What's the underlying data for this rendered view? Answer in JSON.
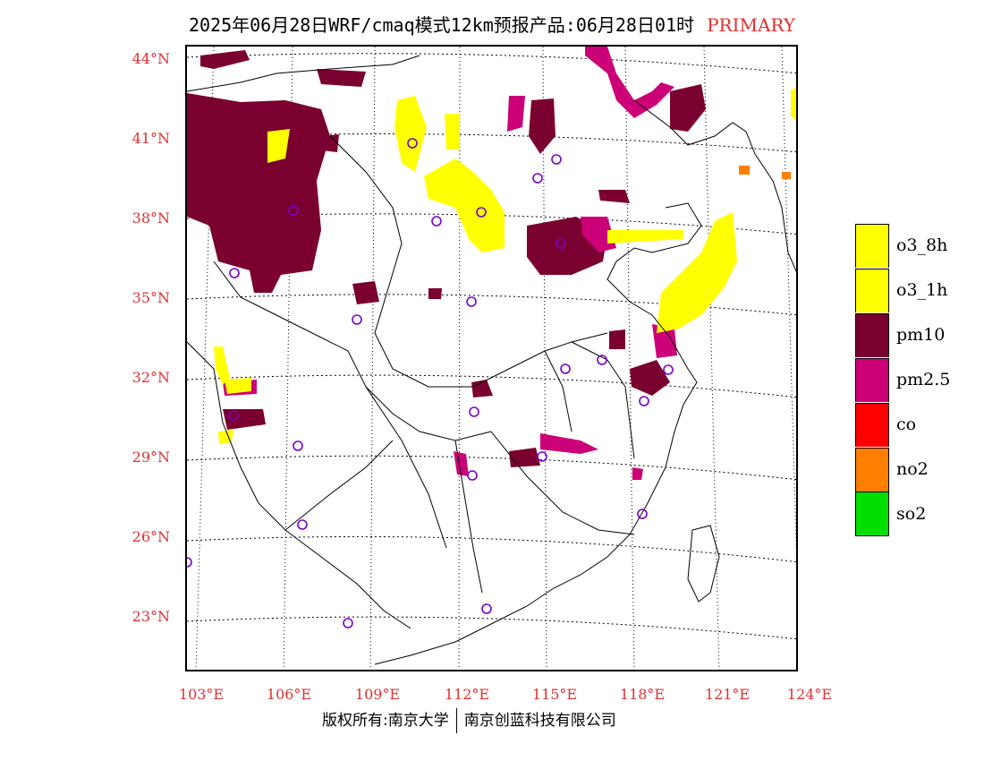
{
  "title": {
    "main": "2025年06月28日WRF/cmaq模式12km预报产品:06月28日01时",
    "tag": "PRIMARY"
  },
  "colors": {
    "o3_8h": "#ffff00",
    "o3_1h": "#ffff00",
    "pm10": "#7a0030",
    "pm25": "#cc0077",
    "co": "#ff0000",
    "no2": "#ff7f00",
    "so2": "#00dd00",
    "station": "#7700cc",
    "axis_label": "#e03030"
  },
  "lat_labels": [
    "44°N",
    "41°N",
    "38°N",
    "35°N",
    "32°N",
    "29°N",
    "26°N",
    "23°N"
  ],
  "lon_labels": [
    "103°E",
    "106°E",
    "109°E",
    "112°E",
    "115°E",
    "118°E",
    "121°E",
    "124°E"
  ],
  "legend": [
    {
      "label": "o3_8h",
      "color_key": "o3_8h"
    },
    {
      "label": "o3_1h",
      "color_key": "o3_1h"
    },
    {
      "label": "pm10",
      "color_key": "pm10"
    },
    {
      "label": "pm2.5",
      "color_key": "pm25"
    },
    {
      "label": "co",
      "color_key": "co"
    },
    {
      "label": "no2",
      "color_key": "no2"
    },
    {
      "label": "so2",
      "color_key": "so2"
    }
  ],
  "footer": {
    "left": "版权所有:南京大学",
    "right": "南京创蓝科技有限公司"
  }
}
